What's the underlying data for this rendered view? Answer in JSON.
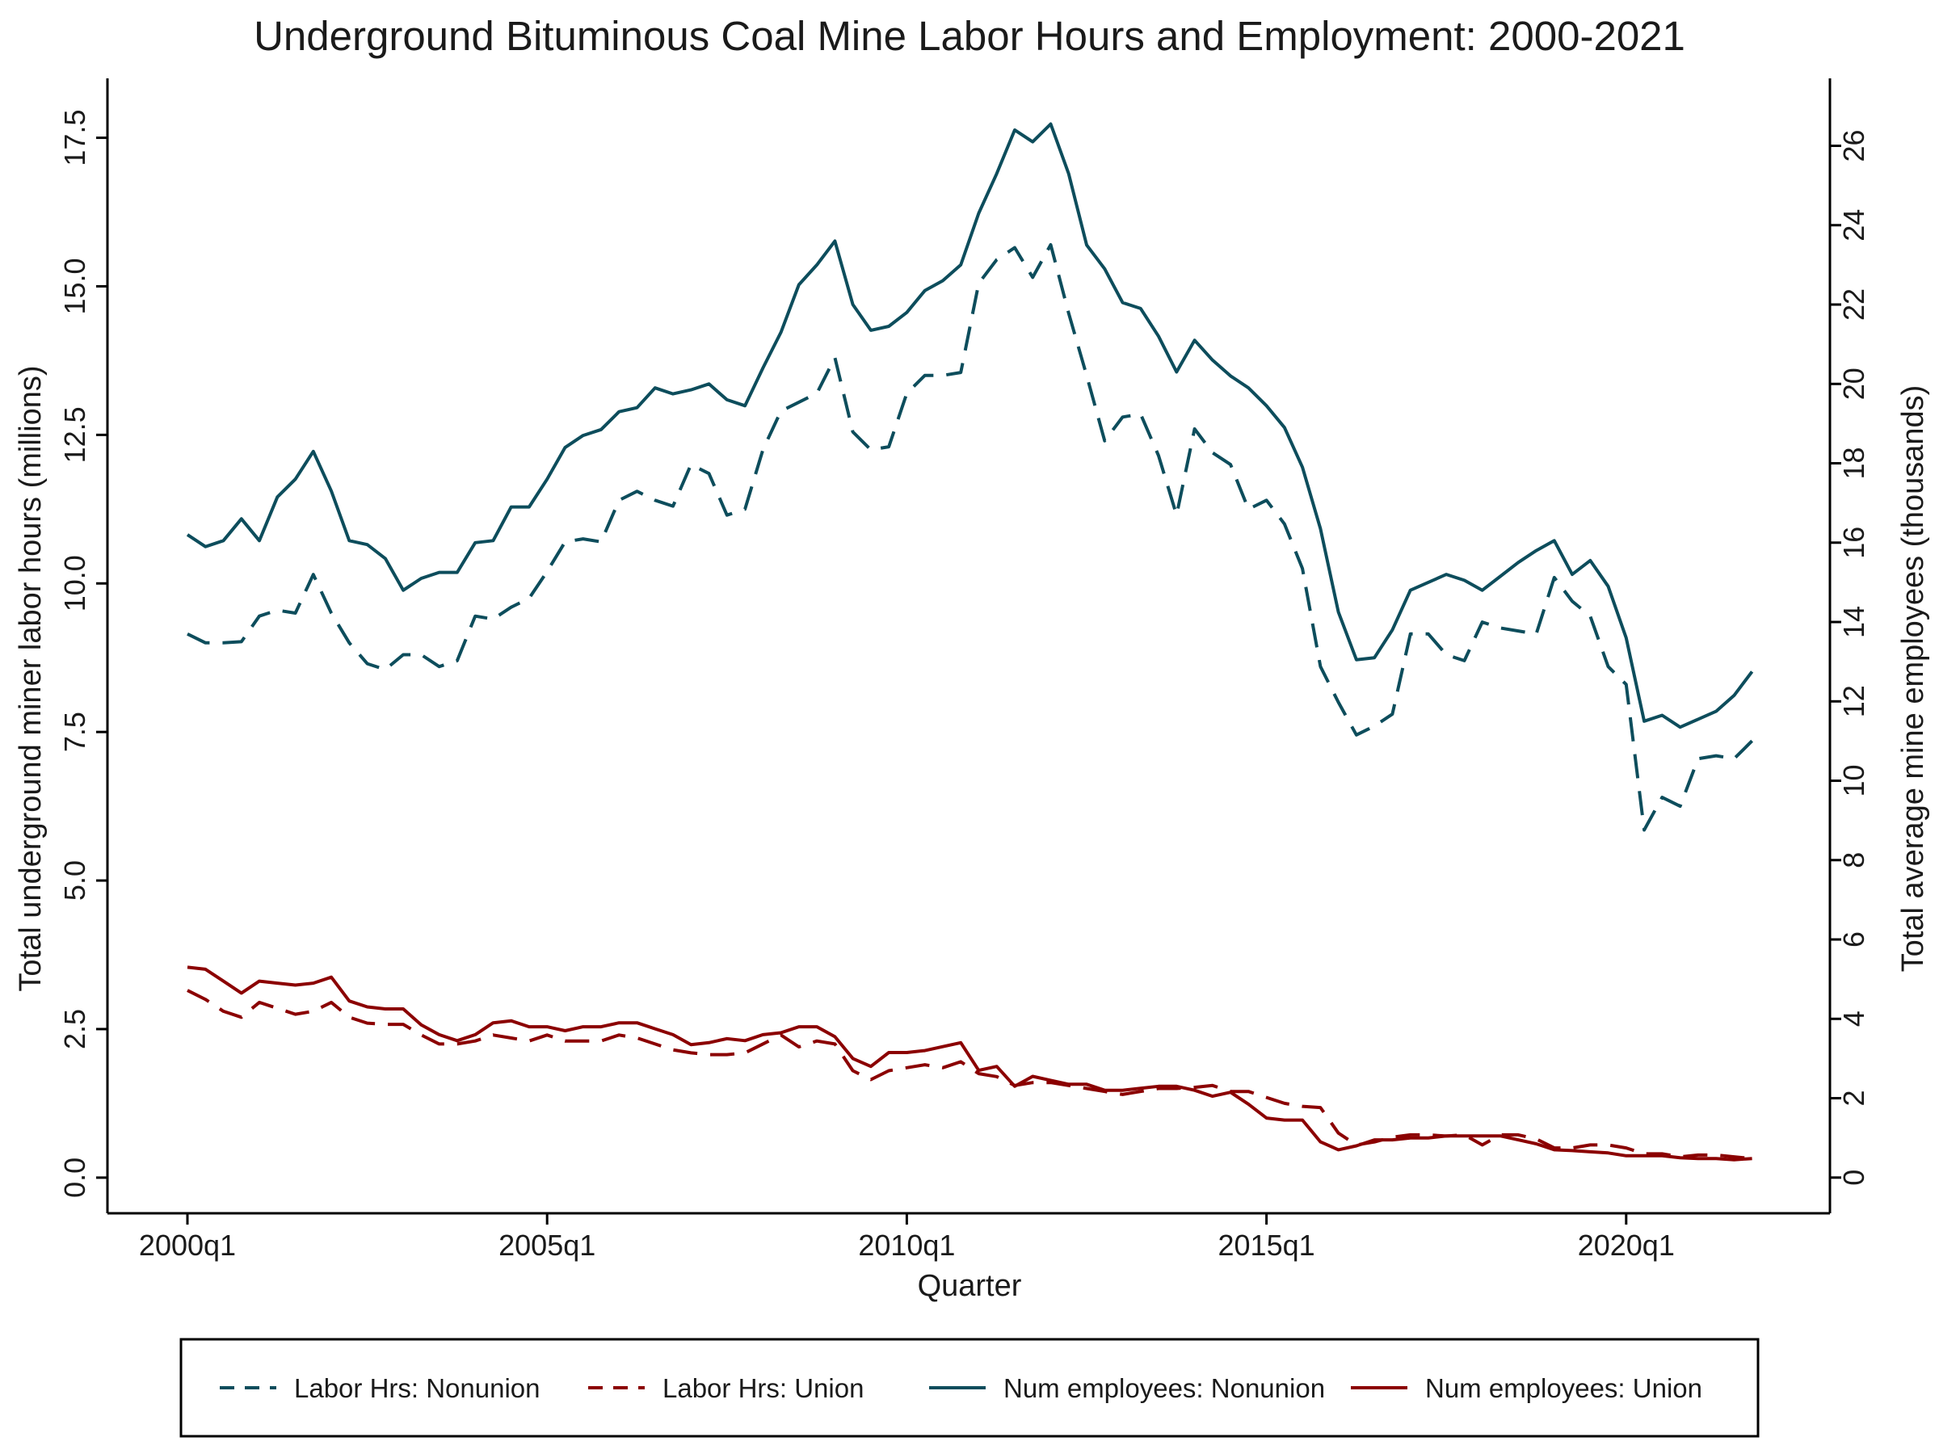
{
  "chart_data": {
    "type": "line",
    "title": "Underground Bituminous Coal Mine Labor Hours and Employment: 2000-2021",
    "xlabel": "Quarter",
    "ylabel_left": "Total underground miner labor hours (millions)",
    "ylabel_right": "Total average mine employees (thousands)",
    "x_start_year": 2000,
    "x_ticks": [
      "2000q1",
      "2005q1",
      "2010q1",
      "2015q1",
      "2020q1"
    ],
    "ylim_left": [
      -0.6,
      18.5
    ],
    "yticks_left": [
      "0.0",
      "2.5",
      "5.0",
      "7.5",
      "10.0",
      "12.5",
      "15.0",
      "17.5"
    ],
    "ylim_right": [
      -0.9,
      27.7
    ],
    "yticks_right": [
      "0",
      "2",
      "4",
      "6",
      "8",
      "10",
      "12",
      "14",
      "16",
      "18",
      "20",
      "22",
      "24",
      "26"
    ],
    "grid": false,
    "legend_position": "bottom",
    "series": [
      {
        "name": "Labor Hrs: Nonunion",
        "axis": "left",
        "color": "#0d4d5c",
        "dash": "dashed",
        "values": [
          9.15,
          9.0,
          9.0,
          9.02,
          9.45,
          9.55,
          9.5,
          10.15,
          9.5,
          9.0,
          8.65,
          8.55,
          8.8,
          8.8,
          8.6,
          8.7,
          9.45,
          9.4,
          9.6,
          9.75,
          10.2,
          10.7,
          10.75,
          10.7,
          11.4,
          11.55,
          11.4,
          11.3,
          12.0,
          11.85,
          11.15,
          11.25,
          12.25,
          12.9,
          13.05,
          13.2,
          13.8,
          12.55,
          12.25,
          12.3,
          13.2,
          13.5,
          13.5,
          13.55,
          15.05,
          15.45,
          15.65,
          15.15,
          15.7,
          14.55,
          13.5,
          12.4,
          12.8,
          12.85,
          12.15,
          11.15,
          12.6,
          12.2,
          12.0,
          11.25,
          11.4,
          11.0,
          10.25,
          8.6,
          8.0,
          7.45,
          7.6,
          7.8,
          9.15,
          9.15,
          8.8,
          8.7,
          9.35,
          9.25,
          9.2,
          9.15,
          10.1,
          9.7,
          9.45,
          8.6,
          8.3,
          5.85,
          6.4,
          6.25,
          7.05,
          7.1,
          7.05,
          7.35
        ]
      },
      {
        "name": "Labor Hrs: Union",
        "axis": "left",
        "color": "#8b0000",
        "dash": "dashed",
        "values": [
          3.15,
          3.0,
          2.8,
          2.7,
          2.95,
          2.85,
          2.75,
          2.8,
          2.95,
          2.7,
          2.6,
          2.58,
          2.58,
          2.4,
          2.25,
          2.25,
          2.3,
          2.4,
          2.35,
          2.3,
          2.4,
          2.3,
          2.3,
          2.3,
          2.4,
          2.35,
          2.25,
          2.15,
          2.1,
          2.07,
          2.07,
          2.1,
          2.25,
          2.4,
          2.2,
          2.3,
          2.25,
          1.8,
          1.65,
          1.8,
          1.85,
          1.9,
          1.85,
          1.95,
          1.75,
          1.7,
          1.55,
          1.6,
          1.6,
          1.55,
          1.5,
          1.45,
          1.4,
          1.45,
          1.5,
          1.5,
          1.52,
          1.55,
          1.45,
          1.45,
          1.35,
          1.25,
          1.2,
          1.18,
          0.75,
          0.55,
          0.6,
          0.68,
          0.72,
          0.72,
          0.7,
          0.72,
          0.55,
          0.72,
          0.72,
          0.65,
          0.5,
          0.5,
          0.55,
          0.55,
          0.5,
          0.4,
          0.4,
          0.35,
          0.38,
          0.38,
          0.35,
          0.32
        ]
      },
      {
        "name": "Num employees: Nonunion",
        "axis": "right",
        "color": "#0d4d5c",
        "dash": "solid",
        "values": [
          16.2,
          15.9,
          16.05,
          16.6,
          16.05,
          17.15,
          17.6,
          18.3,
          17.3,
          16.05,
          15.95,
          15.6,
          14.8,
          15.1,
          15.25,
          15.25,
          16.0,
          16.05,
          16.9,
          16.9,
          17.6,
          18.4,
          18.7,
          18.85,
          19.3,
          19.4,
          19.9,
          19.75,
          19.85,
          20.0,
          19.6,
          19.45,
          20.4,
          21.3,
          22.5,
          23.0,
          23.6,
          22.0,
          21.35,
          21.45,
          21.8,
          22.35,
          22.6,
          23.0,
          24.3,
          25.3,
          26.4,
          26.1,
          26.55,
          25.3,
          23.5,
          22.9,
          22.05,
          21.9,
          21.2,
          20.3,
          21.1,
          20.6,
          20.2,
          19.9,
          19.45,
          18.9,
          17.9,
          16.35,
          14.25,
          13.05,
          13.1,
          13.8,
          14.8,
          15.0,
          15.2,
          15.05,
          14.8,
          15.15,
          15.5,
          15.8,
          16.05,
          15.2,
          15.55,
          14.9,
          13.6,
          11.5,
          11.65,
          11.35,
          11.55,
          11.75,
          12.15,
          12.75
        ]
      },
      {
        "name": "Num employees: Union",
        "axis": "right",
        "color": "#8b0000",
        "dash": "solid",
        "values": [
          5.3,
          5.25,
          4.95,
          4.65,
          4.95,
          4.9,
          4.85,
          4.9,
          5.05,
          4.45,
          4.3,
          4.25,
          4.25,
          3.85,
          3.6,
          3.45,
          3.6,
          3.9,
          3.95,
          3.8,
          3.8,
          3.7,
          3.8,
          3.8,
          3.9,
          3.9,
          3.75,
          3.6,
          3.35,
          3.4,
          3.5,
          3.45,
          3.6,
          3.65,
          3.8,
          3.8,
          3.55,
          3.0,
          2.8,
          3.15,
          3.15,
          3.2,
          3.3,
          3.4,
          2.7,
          2.8,
          2.3,
          2.55,
          2.45,
          2.35,
          2.35,
          2.2,
          2.2,
          2.25,
          2.3,
          2.3,
          2.2,
          2.05,
          2.15,
          1.85,
          1.5,
          1.45,
          1.45,
          0.9,
          0.7,
          0.8,
          0.95,
          0.95,
          1.0,
          1.0,
          1.05,
          1.05,
          1.05,
          1.05,
          0.95,
          0.85,
          0.7,
          0.68,
          0.65,
          0.62,
          0.55,
          0.55,
          0.55,
          0.5,
          0.48,
          0.48,
          0.45,
          0.48
        ]
      }
    ]
  }
}
